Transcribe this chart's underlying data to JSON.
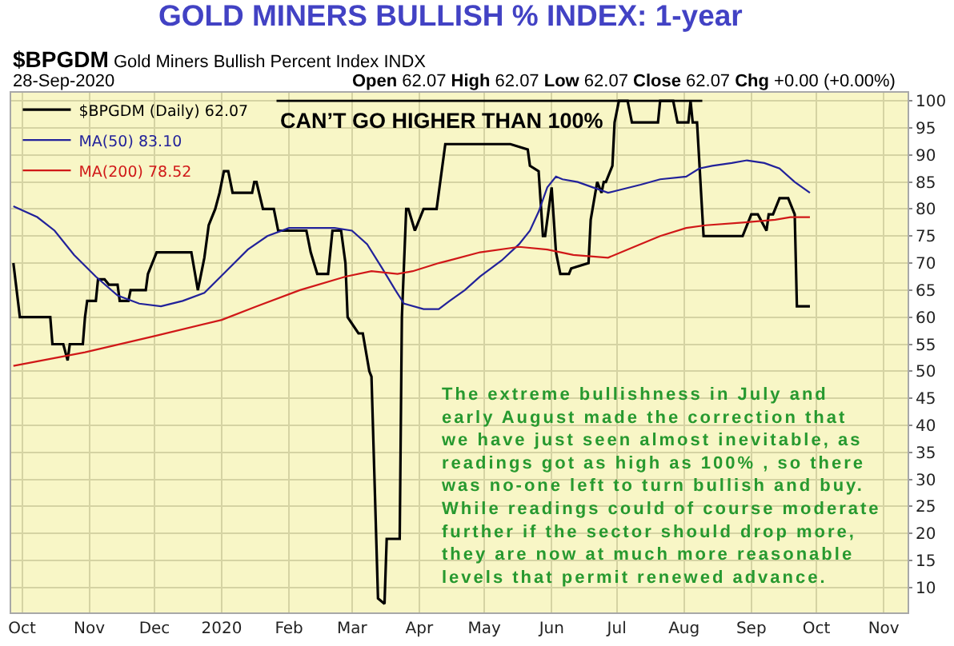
{
  "chart_data": {
    "type": "line",
    "title": "GOLD MINERS BULLISH % INDEX: 1-year",
    "subtitle": "$BPGDM Gold Miners Bullish Percent Index INDX",
    "annotations": [
      "28-Sep-2020",
      "Open 62.07 High 62.07 Low 62.07 Close 62.07 Chg +0.00 (+0.00%)",
      "The extreme bullishness in July and\nearly August made the correction that\nwe have just seen almost inevitable, as\nreadings got as high as 100% , so there\nwas no-one left to turn bullish and buy.\nWhile readings could of course moderate\nfurther if the sector should drop more,\nthey are now at much more reasonable\nlevels that permit renewed advance."
    ],
    "series": [
      {
        "name": "$BPGDM (Daily) 62.07",
        "color": "#000000",
        "x": [
          "2019-09-27",
          "2019-09-30",
          "2019-10-14",
          "2019-10-15",
          "2019-10-20",
          "2019-10-22",
          "2019-10-23",
          "2019-10-29",
          "2019-10-30",
          "2019-10-31",
          "2019-11-04",
          "2019-11-05",
          "2019-11-08",
          "2019-11-10",
          "2019-11-14",
          "2019-11-15",
          "2019-11-19",
          "2019-11-20",
          "2019-11-27",
          "2019-11-28",
          "2019-12-02",
          "2019-12-18",
          "2019-12-21",
          "2019-12-24",
          "2019-12-26",
          "2019-12-29",
          "2019-12-31",
          "2020-01-02",
          "2020-01-04",
          "2020-01-06",
          "2020-01-15",
          "2020-01-16",
          "2020-01-17",
          "2020-01-20",
          "2020-01-25",
          "2020-01-27",
          "2020-02-09",
          "2020-02-11",
          "2020-02-14",
          "2020-02-19",
          "2020-02-21",
          "2020-02-25",
          "2020-02-27",
          "2020-02-28",
          "2020-03-04",
          "2020-03-06",
          "2020-03-09",
          "2020-03-10",
          "2020-03-13",
          "2020-03-16",
          "2020-03-17",
          "2020-03-23",
          "2020-03-24",
          "2020-03-26",
          "2020-03-27",
          "2020-03-30",
          "2020-04-03",
          "2020-04-09",
          "2020-04-13",
          "2020-05-13",
          "2020-05-21",
          "2020-05-22",
          "2020-05-26",
          "2020-05-28",
          "2020-05-29",
          "2020-06-01",
          "2020-06-03",
          "2020-06-05",
          "2020-06-09",
          "2020-06-10",
          "2020-06-18",
          "2020-06-19",
          "2020-06-22",
          "2020-06-24",
          "2020-06-25",
          "2020-06-26",
          "2020-06-29",
          "2020-06-30",
          "2020-07-02",
          "2020-07-06",
          "2020-07-08",
          "2020-07-17",
          "2020-07-20",
          "2020-07-21",
          "2020-07-27",
          "2020-07-29",
          "2020-08-03",
          "2020-08-04",
          "2020-08-05",
          "2020-08-07",
          "2020-08-10",
          "2020-08-28",
          "2020-09-01",
          "2020-09-04",
          "2020-09-08",
          "2020-09-09",
          "2020-09-11",
          "2020-09-14",
          "2020-09-18",
          "2020-09-21",
          "2020-09-22",
          "2020-09-28"
        ],
        "values": [
          70,
          60,
          60,
          55,
          55,
          52,
          55,
          55,
          60,
          63,
          63,
          67,
          67,
          66,
          66,
          63,
          63,
          65,
          65,
          68,
          72,
          72,
          65,
          71,
          77,
          80,
          83,
          87,
          87,
          83,
          83,
          85,
          85,
          80,
          80,
          76,
          76,
          72,
          68,
          68,
          76,
          76,
          70,
          60,
          57,
          57,
          50,
          49,
          8,
          7,
          19,
          19,
          60,
          80,
          80,
          76,
          80,
          80,
          92,
          92,
          91,
          88,
          87,
          75,
          75,
          84,
          72,
          68,
          68,
          69,
          70,
          78,
          85,
          83,
          85,
          85,
          88,
          96,
          100,
          100,
          96,
          96,
          96,
          100,
          100,
          96,
          96,
          100,
          96,
          96,
          75,
          75,
          79,
          79,
          76,
          79,
          79,
          82,
          82,
          79,
          62,
          62
        ]
      },
      {
        "name": "MA(50) 83.10",
        "color": "#22229a",
        "x": [
          "2019-09-27",
          "2019-10-08",
          "2019-10-16",
          "2019-10-25",
          "2019-11-04",
          "2019-11-14",
          "2019-11-24",
          "2019-12-04",
          "2019-12-14",
          "2019-12-24",
          "2020-01-03",
          "2020-01-13",
          "2020-01-22",
          "2020-02-01",
          "2020-02-11",
          "2020-02-22",
          "2020-03-01",
          "2020-03-08",
          "2020-03-15",
          "2020-03-21",
          "2020-03-25",
          "2020-04-03",
          "2020-04-10",
          "2020-04-15",
          "2020-04-22",
          "2020-04-29",
          "2020-05-09",
          "2020-05-17",
          "2020-05-22",
          "2020-05-26",
          "2020-05-30",
          "2020-06-03",
          "2020-06-06",
          "2020-06-13",
          "2020-06-20",
          "2020-06-27",
          "2020-07-02",
          "2020-07-12",
          "2020-07-21",
          "2020-08-02",
          "2020-08-08",
          "2020-08-14",
          "2020-08-23",
          "2020-08-30",
          "2020-09-07",
          "2020-09-14",
          "2020-09-21",
          "2020-09-28"
        ],
        "values": [
          80.5,
          78.5,
          76,
          71.5,
          67.5,
          64,
          62.5,
          62,
          63,
          64.5,
          68.5,
          72.5,
          75,
          76.5,
          76.5,
          76.5,
          76,
          73.5,
          69,
          65,
          62.5,
          61.5,
          61.5,
          63,
          65,
          67.5,
          70.5,
          73.5,
          76,
          79.5,
          84,
          86,
          85.5,
          85,
          84,
          83,
          83.5,
          84.5,
          85.5,
          86,
          87.5,
          88,
          88.5,
          89,
          88.5,
          87.5,
          85,
          83
        ]
      },
      {
        "name": "MA(200) 78.52",
        "color": "#d01818",
        "x": [
          "2019-09-27",
          "2019-10-30",
          "2019-12-01",
          "2020-01-01",
          "2020-01-17",
          "2020-02-06",
          "2020-02-27",
          "2020-03-10",
          "2020-03-22",
          "2020-03-29",
          "2020-04-10",
          "2020-04-15",
          "2020-04-29",
          "2020-05-17",
          "2020-05-30",
          "2020-06-11",
          "2020-06-27",
          "2020-07-09",
          "2020-07-21",
          "2020-08-02",
          "2020-08-11",
          "2020-08-28",
          "2020-09-12",
          "2020-09-19",
          "2020-09-28"
        ],
        "values": [
          51,
          53.5,
          56.5,
          59.5,
          62,
          65,
          67.5,
          68.5,
          68,
          68.5,
          70,
          70.5,
          72,
          73,
          72.5,
          71.5,
          71,
          73,
          75,
          76.5,
          77,
          77.5,
          78,
          78.5,
          78.5
        ]
      }
    ],
    "ref_lines": [
      {
        "axis": "y",
        "value": 100,
        "label": "CAN’T GO HIGHER THAN 100%",
        "color": "#000000"
      }
    ],
    "xlim": [
      "2019-09-26",
      "2020-11-12"
    ],
    "xticks": [
      {
        "value": "2019-10-01",
        "label": "Oct"
      },
      {
        "value": "2019-11-01",
        "label": "Nov"
      },
      {
        "value": "2019-12-01",
        "label": "Dec"
      },
      {
        "value": "2020-01-01",
        "label": "2020"
      },
      {
        "value": "2020-02-01",
        "label": "Feb"
      },
      {
        "value": "2020-03-01",
        "label": "Mar"
      },
      {
        "value": "2020-04-01",
        "label": "Apr"
      },
      {
        "value": "2020-05-01",
        "label": "May"
      },
      {
        "value": "2020-06-01",
        "label": "Jun"
      },
      {
        "value": "2020-07-01",
        "label": "Jul"
      },
      {
        "value": "2020-08-01",
        "label": "Aug"
      },
      {
        "value": "2020-09-01",
        "label": "Sep"
      },
      {
        "value": "2020-10-01",
        "label": "Oct"
      },
      {
        "value": "2020-11-01",
        "label": "Nov"
      }
    ],
    "ylim": [
      5.4,
      101.5
    ],
    "yticks": [
      10,
      15,
      20,
      25,
      30,
      35,
      40,
      45,
      50,
      55,
      60,
      65,
      70,
      75,
      80,
      85,
      90,
      95,
      100
    ],
    "grid": true,
    "legend": "top left"
  }
}
